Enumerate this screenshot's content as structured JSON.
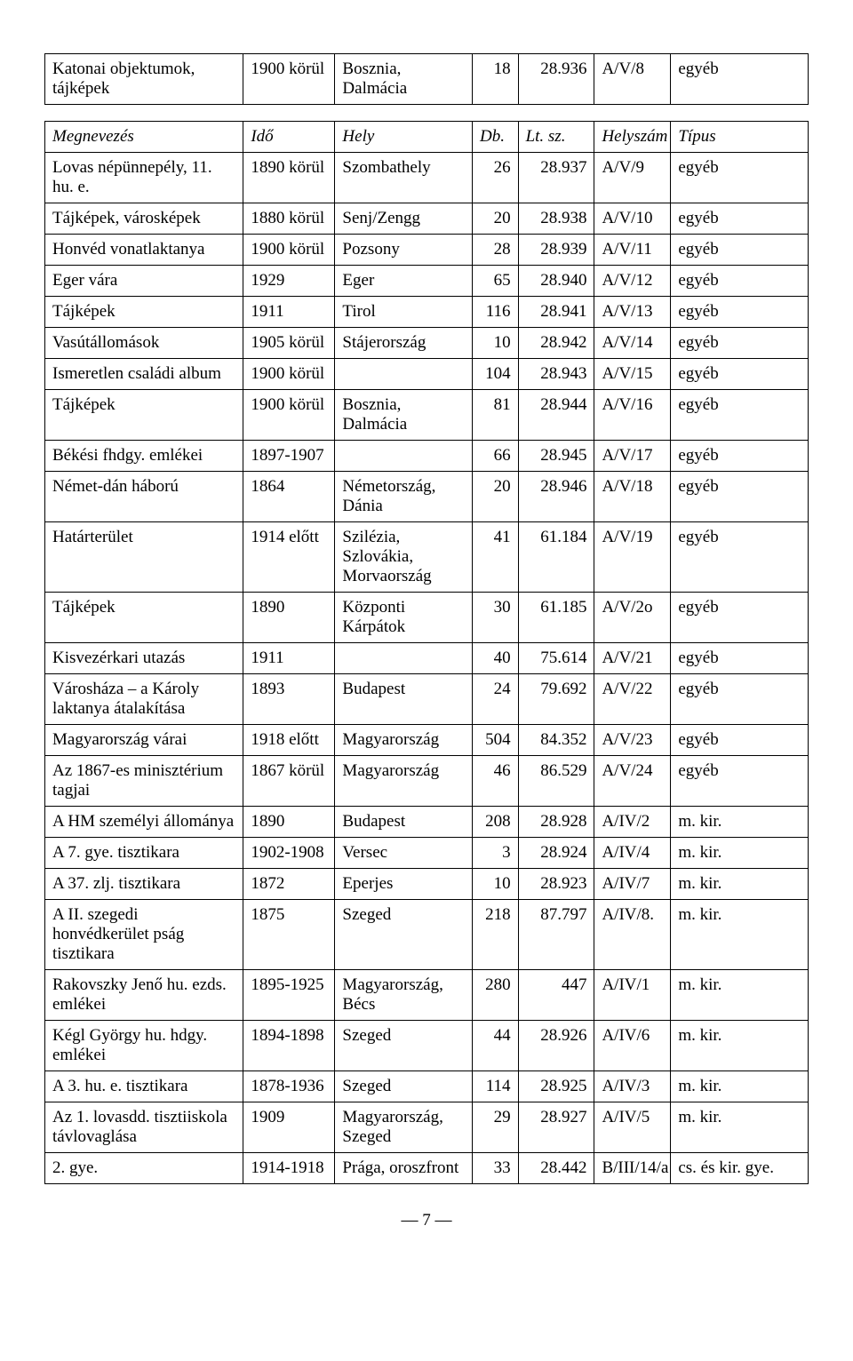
{
  "table1": {
    "rows": [
      {
        "name": "Katonai objektumok, tájképek",
        "time": "1900 körül",
        "place": "Bosznia, Dalmácia",
        "db": "18",
        "lt": "28.936",
        "hely": "A/V/8",
        "type": "egyéb"
      }
    ]
  },
  "table2": {
    "header": {
      "name": "Megnevezés",
      "time": "Idő",
      "place": "Hely",
      "db": "Db.",
      "lt": "Lt. sz.",
      "hely": "Helyszám",
      "type": "Típus"
    },
    "rows": [
      {
        "name": "Lovas népünnepély, 11. hu. e.",
        "time": "1890 körül",
        "place": "Szombathely",
        "db": "26",
        "lt": "28.937",
        "hely": "A/V/9",
        "type": "egyéb"
      },
      {
        "name": "Tájképek, városképek",
        "time": "1880 körül",
        "place": "Senj/Zengg",
        "db": "20",
        "lt": "28.938",
        "hely": "A/V/10",
        "type": "egyéb"
      },
      {
        "name": "Honvéd vonatlaktanya",
        "time": "1900 körül",
        "place": "Pozsony",
        "db": "28",
        "lt": "28.939",
        "hely": "A/V/11",
        "type": "egyéb"
      },
      {
        "name": "Eger vára",
        "time": "1929",
        "place": "Eger",
        "db": "65",
        "lt": "28.940",
        "hely": "A/V/12",
        "type": "egyéb"
      },
      {
        "name": "Tájképek",
        "time": "1911",
        "place": "Tirol",
        "db": "116",
        "lt": "28.941",
        "hely": "A/V/13",
        "type": "egyéb"
      },
      {
        "name": "Vasútállomások",
        "time": "1905 körül",
        "place": "Stájerország",
        "db": "10",
        "lt": "28.942",
        "hely": "A/V/14",
        "type": "egyéb"
      },
      {
        "name": "Ismeretlen családi album",
        "time": "1900 körül",
        "place": "",
        "db": "104",
        "lt": "28.943",
        "hely": "A/V/15",
        "type": "egyéb"
      },
      {
        "name": "Tájképek",
        "time": "1900 körül",
        "place": "Bosznia, Dalmácia",
        "db": "81",
        "lt": "28.944",
        "hely": "A/V/16",
        "type": "egyéb"
      },
      {
        "name": "Békési fhdgy. emlékei",
        "time": "1897-1907",
        "place": "",
        "db": "66",
        "lt": "28.945",
        "hely": "A/V/17",
        "type": "egyéb"
      },
      {
        "name": "Német-dán háború",
        "time": "1864",
        "place": "Németország, Dánia",
        "db": "20",
        "lt": "28.946",
        "hely": "A/V/18",
        "type": "egyéb"
      },
      {
        "name": "Határterület",
        "time": "1914 előtt",
        "place": "Szilézia, Szlovákia, Morvaország",
        "db": "41",
        "lt": "61.184",
        "hely": "A/V/19",
        "type": "egyéb"
      },
      {
        "name": "Tájképek",
        "time": "1890",
        "place": "Központi Kárpátok",
        "db": "30",
        "lt": "61.185",
        "hely": "A/V/2o",
        "type": "egyéb"
      },
      {
        "name": "Kisvezérkari utazás",
        "time": "1911",
        "place": "",
        "db": "40",
        "lt": "75.614",
        "hely": "A/V/21",
        "type": "egyéb"
      },
      {
        "name": "Városháza – a Károly laktanya átalakítása",
        "time": "1893",
        "place": "Budapest",
        "db": "24",
        "lt": "79.692",
        "hely": "A/V/22",
        "type": "egyéb"
      },
      {
        "name": "Magyarország várai",
        "time": "1918 előtt",
        "place": "Magyarország",
        "db": "504",
        "lt": "84.352",
        "hely": "A/V/23",
        "type": "egyéb"
      },
      {
        "name": "Az 1867-es minisztérium tagjai",
        "time": "1867 körül",
        "place": "Magyarország",
        "db": "46",
        "lt": "86.529",
        "hely": "A/V/24",
        "type": "egyéb"
      },
      {
        "name": "A HM személyi állománya",
        "time": "1890",
        "place": "Budapest",
        "db": "208",
        "lt": "28.928",
        "hely": "A/IV/2",
        "type": "m. kir."
      },
      {
        "name": "A 7. gye. tisztikara",
        "time": "1902-1908",
        "place": "Versec",
        "db": "3",
        "lt": "28.924",
        "hely": "A/IV/4",
        "type": "m. kir."
      },
      {
        "name": "A 37. zlj. tisztikara",
        "time": "1872",
        "place": "Eperjes",
        "db": "10",
        "lt": "28.923",
        "hely": "A/IV/7",
        "type": "m. kir."
      },
      {
        "name": "A II. szegedi honvédkerület pság tisztikara",
        "time": "1875",
        "place": "Szeged",
        "db": "218",
        "lt": "87.797",
        "hely": "A/IV/8.",
        "type": "m. kir."
      },
      {
        "name": "Rakovszky Jenő hu. ezds. emlékei",
        "time": "1895-1925",
        "place": "Magyarország, Bécs",
        "db": "280",
        "lt": "447",
        "hely": "A/IV/1",
        "type": "m. kir."
      },
      {
        "name": "Kégl György hu. hdgy. emlékei",
        "time": "1894-1898",
        "place": "Szeged",
        "db": "44",
        "lt": "28.926",
        "hely": "A/IV/6",
        "type": "m. kir."
      },
      {
        "name": "A 3. hu. e. tisztikara",
        "time": "1878-1936",
        "place": "Szeged",
        "db": "114",
        "lt": "28.925",
        "hely": "A/IV/3",
        "type": "m. kir."
      },
      {
        "name": "Az 1. lovasdd. tisztiiskola távlovaglása",
        "time": "1909",
        "place": "Magyarország, Szeged",
        "db": "29",
        "lt": "28.927",
        "hely": "A/IV/5",
        "type": "m. kir."
      },
      {
        "name": "2. gye.",
        "time": "1914-1918",
        "place": "Prága, oroszfront",
        "db": "33",
        "lt": "28.442",
        "hely": "B/III/14/a",
        "type": "cs. és kir. gye."
      }
    ]
  },
  "page_number": "7"
}
